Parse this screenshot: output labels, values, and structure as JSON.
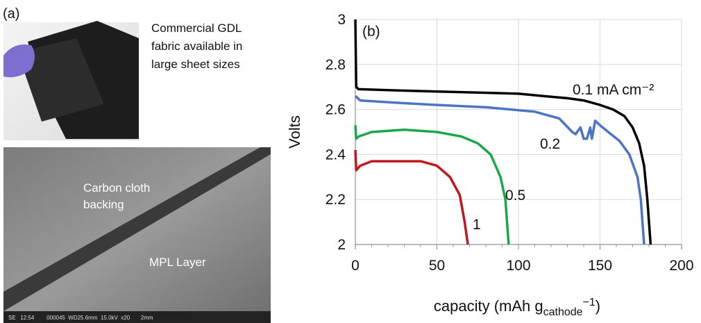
{
  "panel_a": {
    "label": "(a)",
    "photo_caption": [
      "Commercial GDL",
      "fabric available in",
      "large sheet sizes"
    ],
    "sem_labels": [
      "Carbon cloth",
      "backing",
      "MPL Layer"
    ],
    "sem_footer": "SE   12:54        000045  WD25.6mm  15.0kV  x20       2mm"
  },
  "chart_data": {
    "type": "line",
    "panel_label": "(b)",
    "ylabel": "Volts",
    "xlabel_parts": [
      "capacity (mAh g",
      "cathode",
      "−1",
      ")"
    ],
    "xlim": [
      0,
      200
    ],
    "xticks": [
      0,
      50,
      100,
      150,
      200
    ],
    "ylim": [
      2,
      3
    ],
    "yticks": [
      2,
      2.2,
      2.4,
      2.6,
      2.8,
      3
    ],
    "grid": true,
    "series": [
      {
        "name": "0.1 mA cm⁻²",
        "color": "#000000",
        "x": [
          0,
          0.5,
          2,
          25,
          50,
          75,
          100,
          115,
          130,
          140,
          150,
          158,
          165,
          170,
          174,
          177,
          179,
          181
        ],
        "values": [
          3.0,
          2.7,
          2.69,
          2.685,
          2.68,
          2.675,
          2.67,
          2.66,
          2.65,
          2.64,
          2.62,
          2.6,
          2.57,
          2.52,
          2.45,
          2.35,
          2.2,
          2.0
        ]
      },
      {
        "name": "0.2",
        "color": "#4a74c4",
        "x": [
          0,
          3,
          25,
          50,
          80,
          110,
          125,
          133,
          135,
          138,
          140,
          142,
          144,
          145,
          147,
          150,
          155,
          162,
          168,
          173,
          175,
          177
        ],
        "values": [
          2.66,
          2.64,
          2.63,
          2.62,
          2.61,
          2.59,
          2.56,
          2.5,
          2.49,
          2.52,
          2.47,
          2.47,
          2.52,
          2.47,
          2.55,
          2.53,
          2.5,
          2.46,
          2.4,
          2.3,
          2.2,
          2.0
        ]
      },
      {
        "name": "0.5",
        "color": "#1aa64a",
        "x": [
          0,
          0.5,
          2,
          10,
          30,
          50,
          65,
          75,
          83,
          89,
          92,
          94
        ],
        "values": [
          2.53,
          2.47,
          2.48,
          2.5,
          2.51,
          2.5,
          2.48,
          2.45,
          2.4,
          2.3,
          2.2,
          2.0
        ]
      },
      {
        "name": "1",
        "color": "#c0161e",
        "x": [
          0,
          0.5,
          3,
          10,
          40,
          50,
          58,
          64,
          67,
          69
        ],
        "values": [
          2.42,
          2.33,
          2.35,
          2.37,
          2.37,
          2.35,
          2.3,
          2.22,
          2.1,
          2.0
        ]
      }
    ]
  }
}
